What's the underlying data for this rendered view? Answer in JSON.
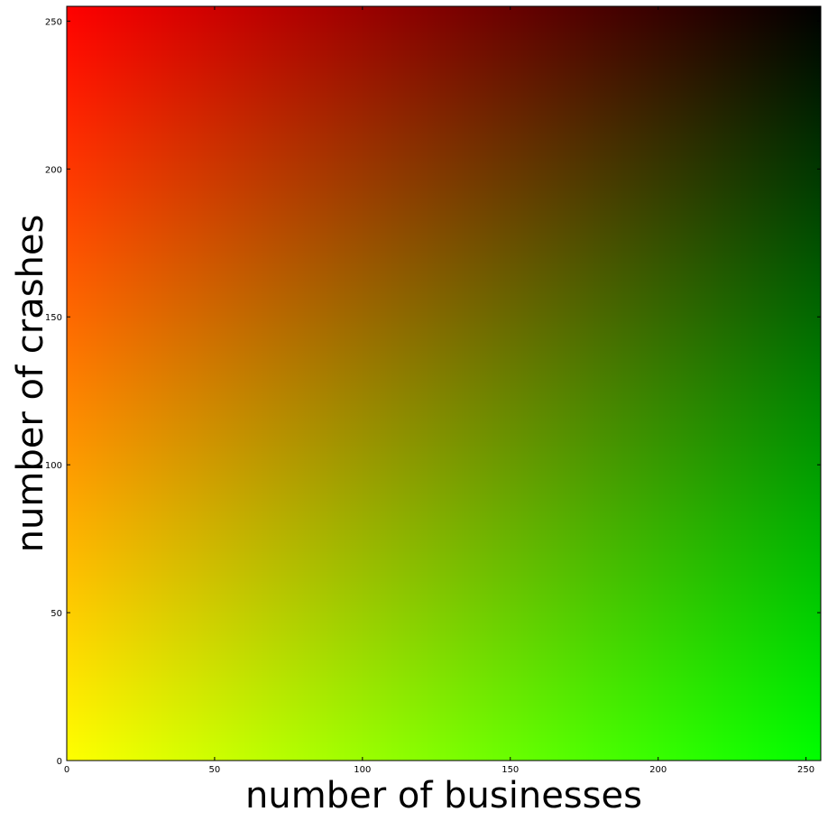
{
  "chart_data": {
    "type": "heatmap",
    "title": "",
    "xlabel": "number of businesses",
    "ylabel": "number of crashes",
    "xlim": [
      0,
      255
    ],
    "ylim": [
      0,
      255
    ],
    "x_ticks": [
      0,
      50,
      100,
      150,
      200,
      250
    ],
    "y_ticks": [
      0,
      50,
      100,
      150,
      200,
      250
    ],
    "x_tick_labels": [
      "0",
      "50",
      "100",
      "150",
      "200",
      "250"
    ],
    "y_tick_labels": [
      "0",
      "50",
      "100",
      "150",
      "200",
      "250"
    ],
    "grid": false,
    "legend": "none",
    "color_model": "red = 255 - businesses, green = 255 - crashes, blue = 0",
    "corner_colors": {
      "bottom-left": "#ffff00",
      "bottom-right": "#00ff00",
      "top-left": "#ff0000",
      "top-right": "#000000"
    }
  }
}
